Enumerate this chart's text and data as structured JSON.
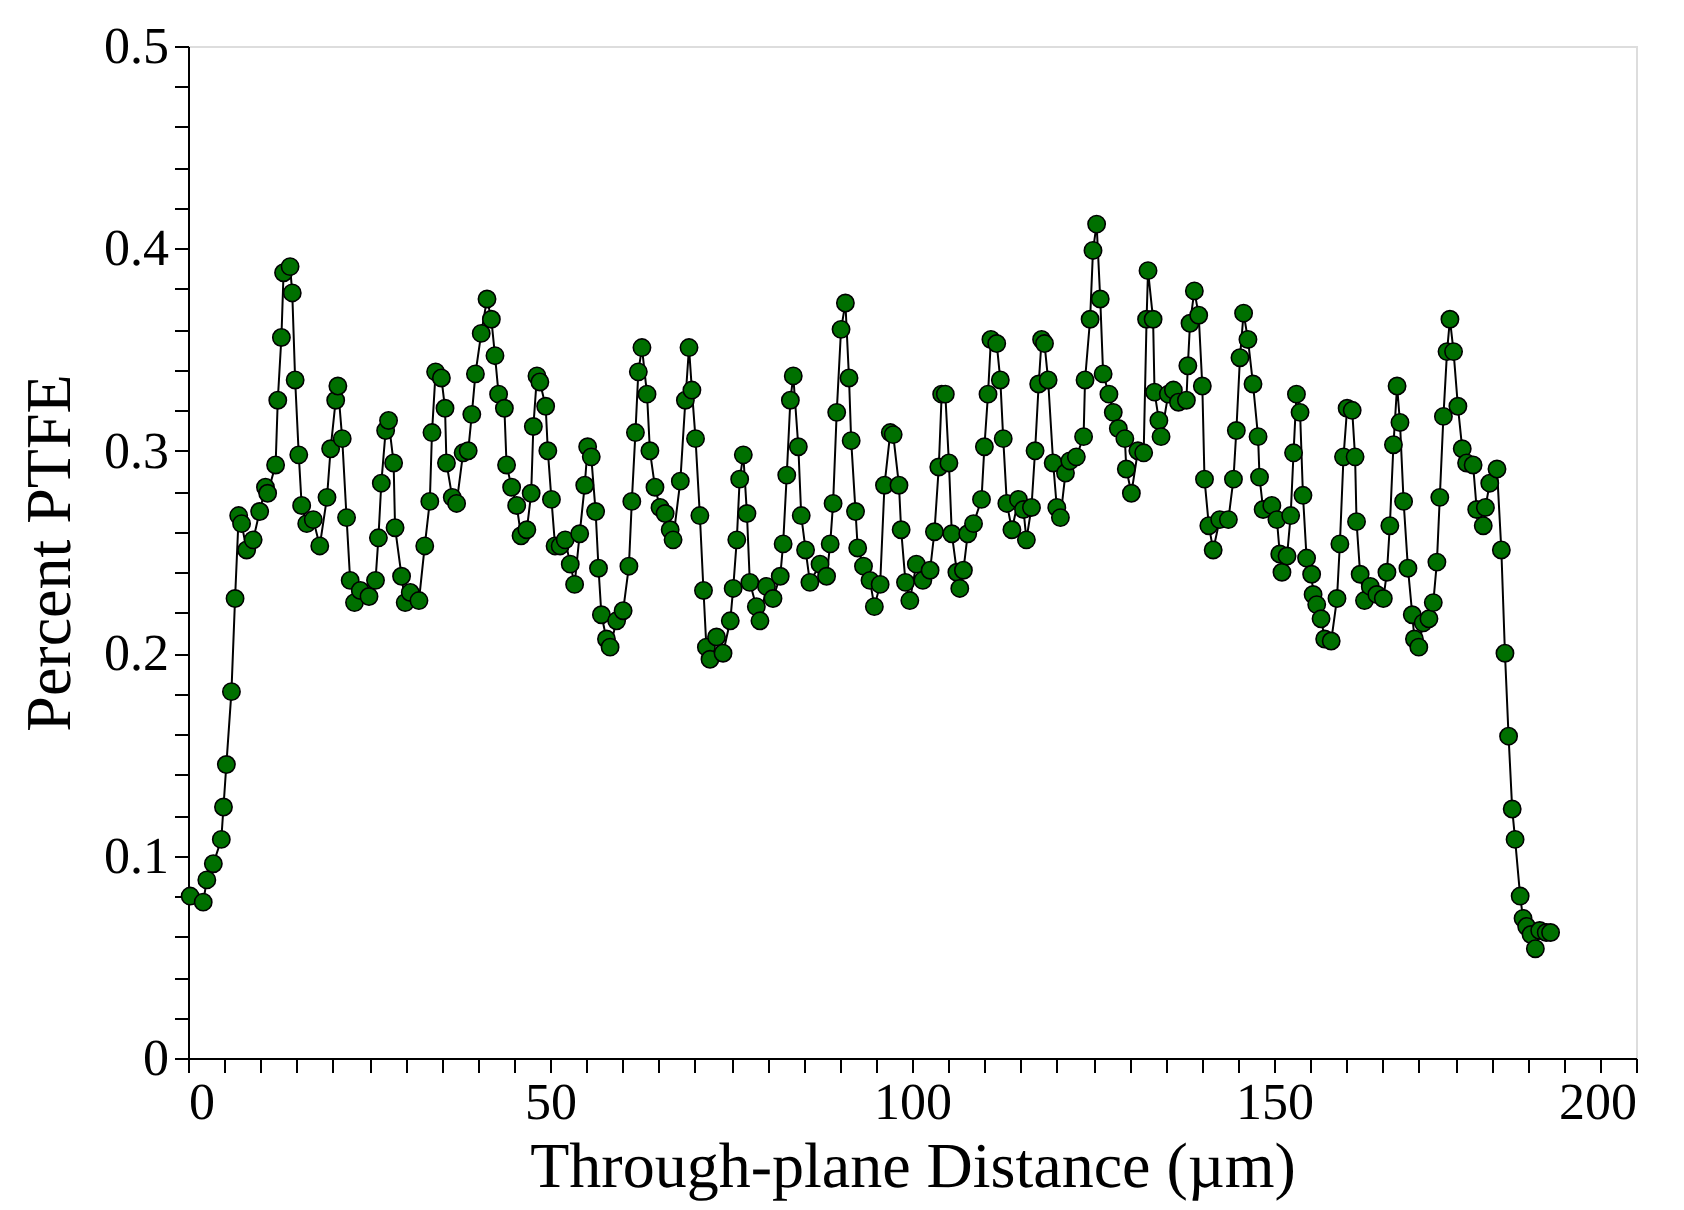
{
  "chart_data": {
    "type": "line",
    "xlabel": "Through-plane Distance (µm)",
    "ylabel": "Percent PTFE",
    "marker": "circle",
    "line_style": "solid",
    "grid": false,
    "legend": false,
    "xlim": [
      0,
      200
    ],
    "ylim": [
      0,
      0.5
    ],
    "xticks": [
      0,
      {
        "value": 5,
        "label": null
      },
      {
        "value": 10,
        "label": null
      },
      {
        "value": 15,
        "label": null
      },
      {
        "value": 20,
        "label": null
      },
      {
        "value": 25,
        "label": null
      },
      {
        "value": 30,
        "label": null
      },
      {
        "value": 35,
        "label": null
      },
      {
        "value": 40,
        "label": null
      },
      {
        "value": 45,
        "label": null
      },
      50,
      {
        "value": 55,
        "label": null
      },
      {
        "value": 60,
        "label": null
      },
      {
        "value": 65,
        "label": null
      },
      {
        "value": 70,
        "label": null
      },
      {
        "value": 75,
        "label": null
      },
      {
        "value": 80,
        "label": null
      },
      {
        "value": 85,
        "label": null
      },
      {
        "value": 90,
        "label": null
      },
      {
        "value": 95,
        "label": null
      },
      100,
      {
        "value": 105,
        "label": null
      },
      {
        "value": 110,
        "label": null
      },
      {
        "value": 115,
        "label": null
      },
      {
        "value": 120,
        "label": null
      },
      {
        "value": 125,
        "label": null
      },
      {
        "value": 130,
        "label": null
      },
      {
        "value": 135,
        "label": null
      },
      {
        "value": 140,
        "label": null
      },
      {
        "value": 145,
        "label": null
      },
      150,
      {
        "value": 155,
        "label": null
      },
      {
        "value": 160,
        "label": null
      },
      {
        "value": 165,
        "label": null
      },
      {
        "value": 170,
        "label": null
      },
      {
        "value": 175,
        "label": null
      },
      {
        "value": 180,
        "label": null
      },
      {
        "value": 185,
        "label": null
      },
      {
        "value": 190,
        "label": null
      },
      {
        "value": 195,
        "label": null
      },
      200
    ],
    "yticks": [
      0,
      {
        "value": 0.02,
        "label": null
      },
      {
        "value": 0.04,
        "label": null
      },
      {
        "value": 0.06,
        "label": null
      },
      {
        "value": 0.08,
        "label": null
      },
      0.1,
      {
        "value": 0.12,
        "label": null
      },
      {
        "value": 0.14,
        "label": null
      },
      {
        "value": 0.16,
        "label": null
      },
      {
        "value": 0.18,
        "label": null
      },
      0.2,
      {
        "value": 0.22,
        "label": null
      },
      {
        "value": 0.24,
        "label": null
      },
      {
        "value": 0.26,
        "label": null
      },
      {
        "value": 0.28,
        "label": null
      },
      0.3,
      {
        "value": 0.32,
        "label": null
      },
      {
        "value": 0.34,
        "label": null
      },
      {
        "value": 0.36,
        "label": null
      },
      {
        "value": 0.38,
        "label": null
      },
      0.4,
      {
        "value": 0.42,
        "label": null
      },
      {
        "value": 0.44,
        "label": null
      },
      {
        "value": 0.46,
        "label": null
      },
      {
        "value": 0.48,
        "label": null
      },
      0.5
    ],
    "series": [
      {
        "color": "#007000",
        "x": [
          0.3,
          2.1,
          2.6,
          3.5,
          4.6,
          4.9,
          5.3,
          6.0,
          6.5,
          7.0,
          7.4,
          8.1,
          9.0,
          9.9,
          10.7,
          11.0,
          12.1,
          12.4,
          12.9,
          13.2,
          14.1,
          14.4,
          14.8,
          15.3,
          15.7,
          16.4,
          17.3,
          18.2,
          19.2,
          19.7,
          20.4,
          20.7,
          21.3,
          21.9,
          22.4,
          23.0,
          23.8,
          25.0,
          25.9,
          26.3,
          26.7,
          27.3,
          27.7,
          28.4,
          28.6,
          29.5,
          30.0,
          30.7,
          31.9,
          32.7,
          33.4,
          33.7,
          34.2,
          35.0,
          35.5,
          35.7,
          36.5,
          37.1,
          38.0,
          38.7,
          39.2,
          39.7,
          40.5,
          41.3,
          41.9,
          42.4,
          42.9,
          43.7,
          44.0,
          44.7,
          45.4,
          46.0,
          46.8,
          47.4,
          47.7,
          48.2,
          48.6,
          49.4,
          49.7,
          50.2,
          50.7,
          51.4,
          52.1,
          52.8,
          53.4,
          54.1,
          54.8,
          55.2,
          55.7,
          56.3,
          56.7,
          57.1,
          57.8,
          58.3,
          59.2,
          60.1,
          60.9,
          61.3,
          61.8,
          62.2,
          62.7,
          63.4,
          63.8,
          64.5,
          65.2,
          65.9,
          66.6,
          67.0,
          68.0,
          68.7,
          69.2,
          69.6,
          70.1,
          70.7,
          71.2,
          71.6,
          72.1,
          73.0,
          73.9,
          74.9,
          75.3,
          75.8,
          76.2,
          76.7,
          77.2,
          77.6,
          78.5,
          79.0,
          79.9,
          80.8,
          81.8,
          82.2,
          82.7,
          83.2,
          83.6,
          84.3,
          84.7,
          85.3,
          85.9,
          87.3,
          88.2,
          88.7,
          89.1,
          89.6,
          90.2,
          90.8,
          91.3,
          91.6,
          92.2,
          92.5,
          93.3,
          94.2,
          94.8,
          95.6,
          96.2,
          97.0,
          97.4,
          98.2,
          98.5,
          99.1,
          99.7,
          100.6,
          101.5,
          102.5,
          103.1,
          103.7,
          104.1,
          104.6,
          105.1,
          105.5,
          106.2,
          106.6,
          107.1,
          107.7,
          108.5,
          109.6,
          110.0,
          110.5,
          110.9,
          111.7,
          112.2,
          112.6,
          113.1,
          113.8,
          114.7,
          115.4,
          115.8,
          116.5,
          117.0,
          117.5,
          117.9,
          118.3,
          118.8,
          119.5,
          120.0,
          120.5,
          121.2,
          121.8,
          122.7,
          123.7,
          123.9,
          124.6,
          125.0,
          125.5,
          126.0,
          126.4,
          127.2,
          127.8,
          128.5,
          129.4,
          129.6,
          130.3,
          131.2,
          132.0,
          132.4,
          132.6,
          133.3,
          133.5,
          134.1,
          134.4,
          135.4,
          136.1,
          136.8,
          137.9,
          138.1,
          138.4,
          139.0,
          139.6,
          140.1,
          140.4,
          141.0,
          141.6,
          142.5,
          143.7,
          144.4,
          144.8,
          145.3,
          145.8,
          146.4,
          147.1,
          147.8,
          148.0,
          148.5,
          149.7,
          150.4,
          150.8,
          151.1,
          151.8,
          152.3,
          152.7,
          153.1,
          153.6,
          154.0,
          154.5,
          155.2,
          155.4,
          155.9,
          156.5,
          157.0,
          157.9,
          158.7,
          159.1,
          159.6,
          160.1,
          160.8,
          161.2,
          161.4,
          161.9,
          162.5,
          163.3,
          164.2,
          165.1,
          165.6,
          166.0,
          166.5,
          167.0,
          167.4,
          167.9,
          168.5,
          169.1,
          169.4,
          170.0,
          170.6,
          171.4,
          172.0,
          172.5,
          172.9,
          173.4,
          173.9,
          174.3,
          174.8,
          175.4,
          176.0,
          176.6,
          177.5,
          178.0,
          178.9,
          179.2,
          179.8,
          180.8,
          181.4,
          181.9,
          182.4,
          182.9,
          183.3,
          184.0,
          184.4,
          184.9,
          185.5,
          186.1,
          186.7,
          187.6,
          188.2
        ],
        "values": [
          0.08,
          0.077,
          0.088,
          0.096,
          0.108,
          0.124,
          0.145,
          0.181,
          0.227,
          0.268,
          0.264,
          0.251,
          0.256,
          0.27,
          0.282,
          0.279,
          0.293,
          0.325,
          0.356,
          0.388,
          0.391,
          0.378,
          0.335,
          0.298,
          0.273,
          0.264,
          0.266,
          0.253,
          0.277,
          0.301,
          0.325,
          0.332,
          0.306,
          0.267,
          0.236,
          0.225,
          0.231,
          0.228,
          0.236,
          0.257,
          0.284,
          0.31,
          0.315,
          0.294,
          0.262,
          0.238,
          0.225,
          0.23,
          0.226,
          0.253,
          0.275,
          0.309,
          0.339,
          0.336,
          0.321,
          0.294,
          0.277,
          0.274,
          0.299,
          0.3,
          0.318,
          0.338,
          0.358,
          0.375,
          0.365,
          0.347,
          0.328,
          0.321,
          0.293,
          0.282,
          0.273,
          0.258,
          0.261,
          0.279,
          0.312,
          0.337,
          0.334,
          0.322,
          0.3,
          0.276,
          0.253,
          0.253,
          0.256,
          0.244,
          0.234,
          0.259,
          0.283,
          0.302,
          0.297,
          0.27,
          0.242,
          0.219,
          0.207,
          0.203,
          0.216,
          0.221,
          0.243,
          0.275,
          0.309,
          0.339,
          0.351,
          0.328,
          0.3,
          0.282,
          0.272,
          0.269,
          0.261,
          0.256,
          0.285,
          0.325,
          0.351,
          0.33,
          0.306,
          0.268,
          0.231,
          0.203,
          0.197,
          0.208,
          0.2,
          0.216,
          0.232,
          0.256,
          0.286,
          0.298,
          0.269,
          0.235,
          0.223,
          0.216,
          0.233,
          0.227,
          0.238,
          0.254,
          0.288,
          0.325,
          0.337,
          0.302,
          0.268,
          0.251,
          0.235,
          0.244,
          0.238,
          0.254,
          0.274,
          0.319,
          0.36,
          0.373,
          0.336,
          0.305,
          0.27,
          0.252,
          0.243,
          0.236,
          0.223,
          0.234,
          0.283,
          0.309,
          0.308,
          0.283,
          0.261,
          0.235,
          0.226,
          0.244,
          0.236,
          0.241,
          0.26,
          0.292,
          0.328,
          0.328,
          0.294,
          0.259,
          0.24,
          0.232,
          0.241,
          0.259,
          0.264,
          0.276,
          0.302,
          0.328,
          0.355,
          0.353,
          0.335,
          0.306,
          0.274,
          0.261,
          0.276,
          0.271,
          0.256,
          0.272,
          0.3,
          0.333,
          0.355,
          0.353,
          0.335,
          0.294,
          0.272,
          0.267,
          0.289,
          0.295,
          0.297,
          0.307,
          0.335,
          0.365,
          0.399,
          0.412,
          0.375,
          0.338,
          0.328,
          0.319,
          0.311,
          0.306,
          0.291,
          0.279,
          0.3,
          0.299,
          0.365,
          0.389,
          0.365,
          0.329,
          0.315,
          0.307,
          0.328,
          0.33,
          0.324,
          0.325,
          0.342,
          0.363,
          0.379,
          0.367,
          0.332,
          0.286,
          0.263,
          0.251,
          0.266,
          0.266,
          0.286,
          0.31,
          0.346,
          0.368,
          0.355,
          0.333,
          0.307,
          0.287,
          0.271,
          0.273,
          0.266,
          0.249,
          0.24,
          0.248,
          0.268,
          0.299,
          0.328,
          0.319,
          0.278,
          0.247,
          0.239,
          0.229,
          0.224,
          0.217,
          0.207,
          0.206,
          0.227,
          0.254,
          0.297,
          0.321,
          0.32,
          0.297,
          0.265,
          0.239,
          0.226,
          0.233,
          0.229,
          0.227,
          0.24,
          0.263,
          0.303,
          0.332,
          0.314,
          0.275,
          0.242,
          0.219,
          0.207,
          0.203,
          0.215,
          0.217,
          0.225,
          0.245,
          0.277,
          0.317,
          0.349,
          0.365,
          0.349,
          0.322,
          0.301,
          0.294,
          0.293,
          0.271,
          0.263,
          0.272,
          0.284,
          0.291,
          0.251,
          0.2,
          0.159,
          0.123,
          0.108,
          0.08,
          0.069,
          0.065,
          0.061,
          0.054,
          0.063,
          0.062,
          0.062
        ]
      }
    ]
  }
}
